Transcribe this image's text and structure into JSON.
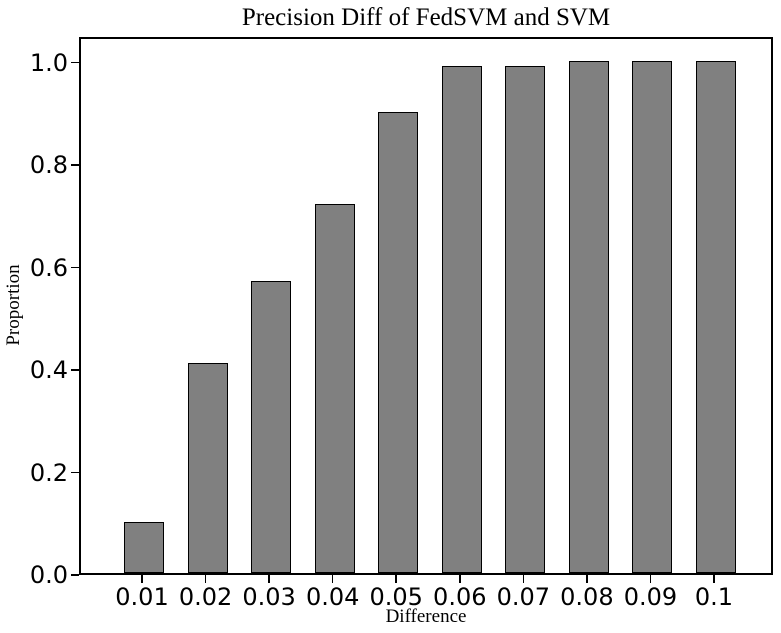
{
  "chart_data": {
    "type": "bar",
    "title": "Precision Diff of FedSVM and SVM",
    "xlabel": "Difference",
    "ylabel": "Proportion",
    "categories": [
      "0.01",
      "0.02",
      "0.03",
      "0.04",
      "0.05",
      "0.06",
      "0.07",
      "0.08",
      "0.09",
      "0.1"
    ],
    "values": [
      0.1,
      0.41,
      0.57,
      0.72,
      0.9,
      0.99,
      0.99,
      1.0,
      1.0,
      1.0
    ],
    "ylim": [
      0,
      1.05
    ],
    "yticks": [
      "0.0",
      "0.2",
      "0.4",
      "0.6",
      "0.8",
      "1.0"
    ],
    "ytick_values": [
      0.0,
      0.2,
      0.4,
      0.6,
      0.8,
      1.0
    ],
    "grid": false,
    "legend_position": "none",
    "bar_color": "#808080",
    "bar_edge_color": "#000000",
    "axis_color": "#000000"
  }
}
